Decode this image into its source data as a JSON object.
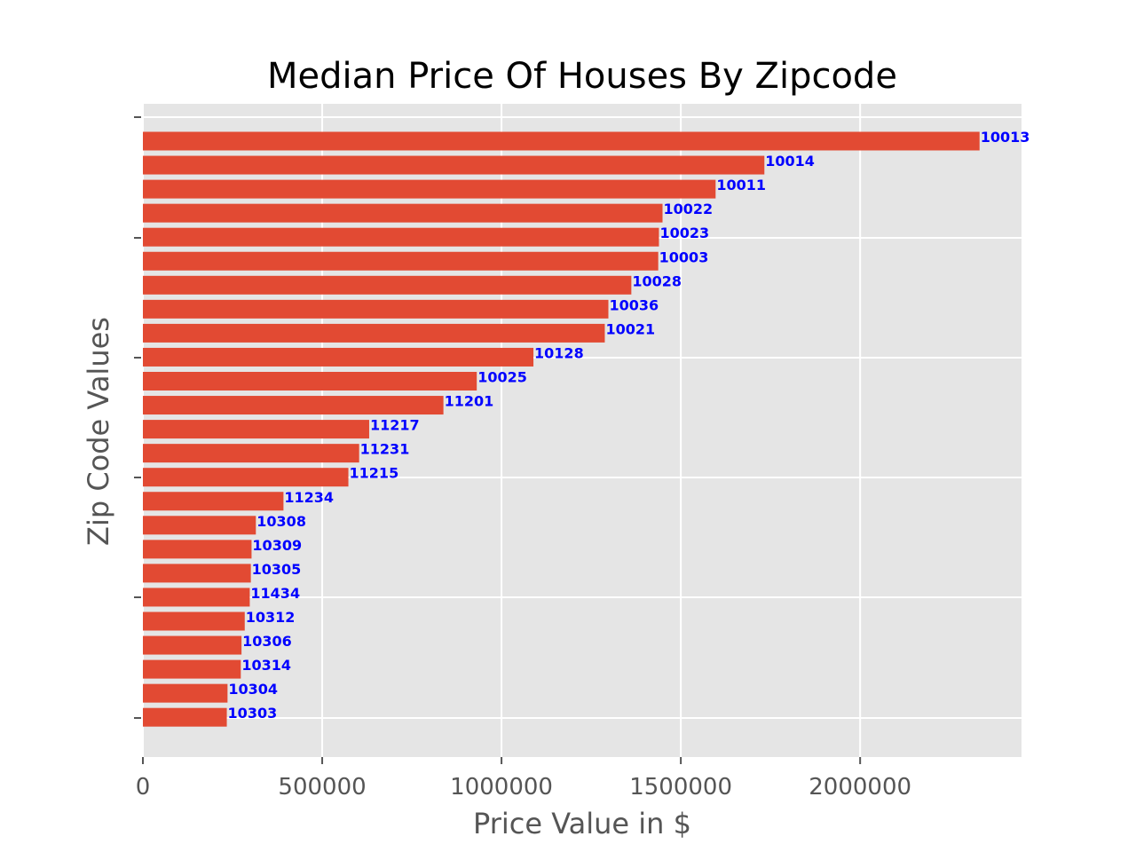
{
  "chart_data": {
    "type": "bar",
    "orientation": "horizontal",
    "title": "Median Price Of Houses By Zipcode",
    "xlabel": "Price Value in $",
    "ylabel": "Zip Code Values",
    "xlim": [
      0,
      2450000
    ],
    "xticks": [
      0,
      500000,
      1000000,
      1500000,
      2000000
    ],
    "xtick_labels": [
      "0",
      "500000",
      "1000000",
      "1500000",
      "2000000"
    ],
    "grid": true,
    "categories": [
      "10013",
      "10014",
      "10011",
      "10022",
      "10023",
      "10003",
      "10028",
      "10036",
      "10021",
      "10128",
      "10025",
      "11201",
      "11217",
      "11231",
      "11215",
      "11234",
      "10308",
      "10309",
      "10305",
      "11434",
      "10312",
      "10306",
      "10314",
      "10304",
      "10303"
    ],
    "values": [
      2333000,
      1733000,
      1597000,
      1449000,
      1439000,
      1437000,
      1362000,
      1298000,
      1288000,
      1089000,
      931000,
      838000,
      631000,
      603000,
      573000,
      392000,
      315000,
      303000,
      301000,
      298000,
      284000,
      275000,
      273000,
      236000,
      234000
    ],
    "colors": {
      "bar": "#E24A33",
      "label": "#0000FF",
      "plot_background": "#E5E5E5",
      "grid": "#FFFFFF"
    }
  }
}
